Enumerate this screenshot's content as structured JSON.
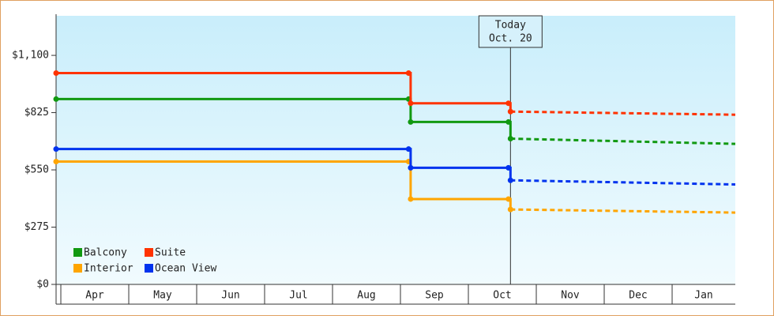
{
  "chart_data": {
    "type": "step-line",
    "categories": [
      "Apr",
      "May",
      "Jun",
      "Jul",
      "Aug",
      "Sep",
      "Oct",
      "Nov",
      "Dec",
      "Jan"
    ],
    "x": [
      -0.07,
      5.12,
      5.15,
      6.59
    ],
    "forecast_x": [
      6.62,
      9.93
    ],
    "xlim": [
      -0.07,
      9.93
    ],
    "ylim": [
      0,
      1290
    ],
    "yticks": [
      {
        "value": 0,
        "label": "$0"
      },
      {
        "value": 275,
        "label": "$275"
      },
      {
        "value": 550,
        "label": "$550"
      },
      {
        "value": 825,
        "label": "$825"
      },
      {
        "value": 1100,
        "label": "$1,100"
      }
    ],
    "series": [
      {
        "name": "Balcony",
        "color": "#119911",
        "values": [
          890,
          890,
          780,
          780
        ],
        "forecast": [
          700,
          675
        ]
      },
      {
        "name": "Suite",
        "color": "#ff3300",
        "values": [
          1015,
          1015,
          870,
          870
        ],
        "forecast": [
          830,
          815
        ]
      },
      {
        "name": "Interior",
        "color": "#ffa500",
        "values": [
          590,
          590,
          410,
          410
        ],
        "forecast": [
          360,
          345
        ]
      },
      {
        "name": "Ocean View",
        "color": "#0033ee",
        "values": [
          650,
          650,
          560,
          560
        ],
        "forecast": [
          500,
          480
        ]
      }
    ],
    "annotation": {
      "x": 6.62,
      "lines": [
        "Today",
        "Oct. 20"
      ]
    },
    "legend": "lower left"
  }
}
